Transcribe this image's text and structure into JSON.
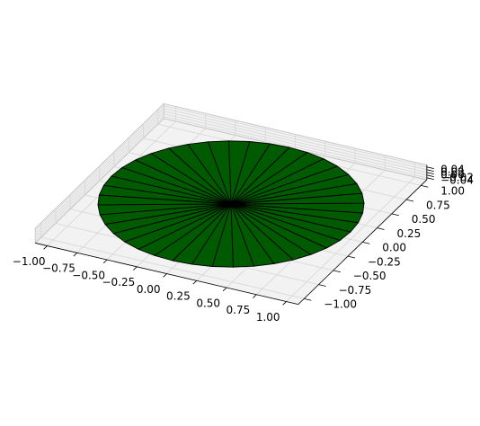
{
  "chart_data": {
    "type": "surface3d",
    "title": "",
    "xlabel": "",
    "ylabel": "",
    "zlabel": "",
    "surface": {
      "shape": "disk",
      "radius": 1.0,
      "z": 0.0,
      "radial_divisions": 40,
      "face_color": "#005b00",
      "edge_color": "#000000"
    },
    "xlim": [
      -1.1,
      1.1
    ],
    "ylim": [
      -1.1,
      1.1
    ],
    "zlim": [
      -0.055,
      0.055
    ],
    "x_ticks": [
      -1.0,
      -0.75,
      -0.5,
      -0.25,
      0.0,
      0.25,
      0.5,
      0.75,
      1.0
    ],
    "y_ticks": [
      -1.0,
      -0.75,
      -0.5,
      -0.25,
      0.0,
      0.25,
      0.5,
      0.75,
      1.0
    ],
    "z_ticks": [
      -0.04,
      -0.02,
      0.0,
      0.02,
      0.04
    ],
    "x_tick_labels": [
      "−1.00",
      "−0.75",
      "−0.50",
      "−0.25",
      "0.00",
      "0.25",
      "0.50",
      "0.75",
      "1.00"
    ],
    "y_tick_labels": [
      "−1.00",
      "−0.75",
      "−0.50",
      "−0.25",
      "0.00",
      "0.25",
      "0.50",
      "0.75",
      "1.00"
    ],
    "z_tick_labels": [
      "−0.04",
      "−0.02",
      "0.00",
      "0.02",
      "0.04"
    ],
    "grid": true,
    "colors": {
      "pane": "#f2f2f2",
      "pane_edge": "#bfbfbf",
      "grid": "#d6d6d6",
      "axis_line": "#000000"
    }
  }
}
